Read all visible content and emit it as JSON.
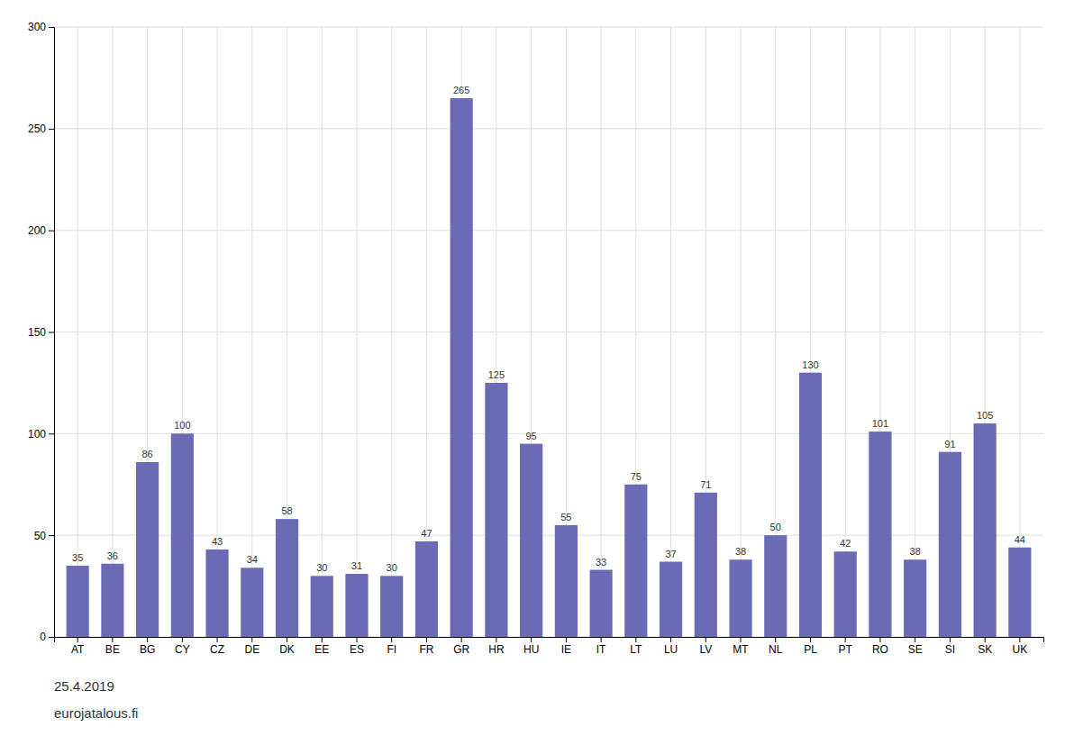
{
  "chart_data": {
    "type": "bar",
    "categories": [
      "AT",
      "BE",
      "BG",
      "CY",
      "CZ",
      "DE",
      "DK",
      "EE",
      "ES",
      "FI",
      "FR",
      "GR",
      "HR",
      "HU",
      "IE",
      "IT",
      "LT",
      "LU",
      "LV",
      "MT",
      "NL",
      "PL",
      "PT",
      "RO",
      "SE",
      "SI",
      "SK",
      "UK"
    ],
    "values": [
      35,
      36,
      86,
      100,
      43,
      34,
      58,
      30,
      31,
      30,
      47,
      265,
      125,
      95,
      55,
      33,
      75,
      37,
      71,
      38,
      50,
      130,
      42,
      101,
      38,
      91,
      105,
      44
    ],
    "color": "#6b6bb5",
    "ylim": [
      0,
      300
    ],
    "yticks": [
      0,
      50,
      100,
      150,
      200,
      250,
      300
    ],
    "grid": true,
    "data_labels": true,
    "annotations": [
      "25.4.2019",
      "eurojatalous.fi"
    ]
  }
}
